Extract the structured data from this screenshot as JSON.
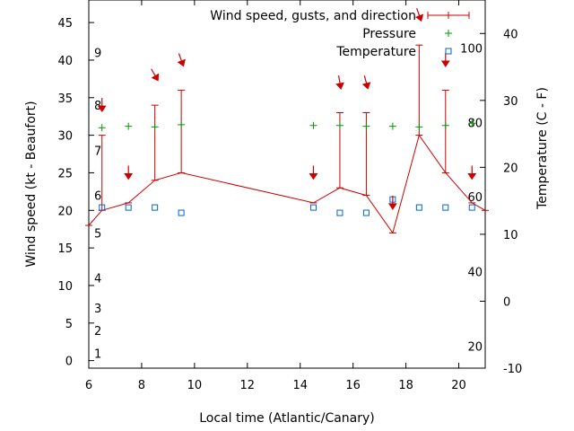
{
  "chart_data": {
    "type": "line",
    "xlabel": "Local time (Atlantic/Canary)",
    "ylabel": "Wind speed (kt - Beaufort)",
    "y2label": "Temperature (C - F)",
    "xlim": [
      6,
      21
    ],
    "ylim": [
      -1,
      48
    ],
    "y2lim": [
      -10,
      45
    ],
    "x_ticks": [
      6,
      8,
      10,
      12,
      14,
      16,
      18,
      20
    ],
    "y_ticks": [
      0,
      5,
      10,
      15,
      20,
      25,
      30,
      35,
      40,
      45
    ],
    "y2_ticks": [
      -10,
      0,
      10,
      20,
      30,
      40
    ],
    "grid": false,
    "legend_position": "top-right",
    "colors": {
      "wind": "#cc0000",
      "pressure": "#009900",
      "temperature": "#0066cc",
      "axes": "#000000"
    },
    "beaufort_scale": [
      {
        "label": "1",
        "kt": 1
      },
      {
        "label": "2",
        "kt": 4
      },
      {
        "label": "3",
        "kt": 7
      },
      {
        "label": "4",
        "kt": 11
      },
      {
        "label": "5",
        "kt": 17
      },
      {
        "label": "6",
        "kt": 22
      },
      {
        "label": "7",
        "kt": 28
      },
      {
        "label": "8",
        "kt": 34
      },
      {
        "label": "9",
        "kt": 41
      }
    ],
    "fahrenheit_scale": [
      {
        "label": "20",
        "c": -6.7
      },
      {
        "label": "40",
        "c": 4.4
      },
      {
        "label": "60",
        "c": 15.6
      },
      {
        "label": "80",
        "c": 26.7
      },
      {
        "label": "100",
        "c": 37.8
      }
    ],
    "series": [
      {
        "name": "Wind speed, gusts, and direction",
        "style": "line with error bars",
        "x": [
          6,
          6.5,
          7.5,
          8.5,
          9.5,
          14.5,
          15.5,
          16.5,
          17.5,
          18.5,
          19.5,
          20.5,
          21
        ],
        "y": [
          18,
          20,
          21,
          24,
          25,
          21,
          23,
          22,
          17,
          30,
          25,
          21,
          20
        ],
        "gusts": [
          null,
          30,
          null,
          34,
          36,
          null,
          33,
          33,
          null,
          42,
          36,
          null,
          null
        ],
        "direction_arrows": [
          {
            "x": 6.5,
            "y": 34,
            "angle": 0
          },
          {
            "x": 7.5,
            "y": 25,
            "angle": 0
          },
          {
            "x": 8.5,
            "y": 38,
            "angle": -30
          },
          {
            "x": 9.5,
            "y": 40,
            "angle": -20
          },
          {
            "x": 14.5,
            "y": 25,
            "angle": 0
          },
          {
            "x": 15.5,
            "y": 37,
            "angle": -10
          },
          {
            "x": 16.5,
            "y": 37,
            "angle": -15
          },
          {
            "x": 17.5,
            "y": 21,
            "angle": 0
          },
          {
            "x": 18.5,
            "y": 46,
            "angle": -20
          },
          {
            "x": 19.5,
            "y": 40,
            "angle": 0
          },
          {
            "x": 20.5,
            "y": 25,
            "angle": 0
          }
        ]
      },
      {
        "name": "Pressure",
        "style": "points (+)",
        "x": [
          6.5,
          7.5,
          8.5,
          9.5,
          14.5,
          15.5,
          16.5,
          17.5,
          18.5,
          19.5,
          20.5
        ],
        "y": [
          31,
          31.2,
          31.1,
          31.4,
          31.3,
          31.3,
          31.2,
          31.2,
          31.1,
          31.3,
          31.6
        ]
      },
      {
        "name": "Temperature",
        "style": "points (open square)",
        "axis": "y2",
        "x": [
          6.5,
          7.5,
          8.5,
          9.5,
          14.5,
          15.5,
          16.5,
          17.5,
          18.5,
          19.5,
          20.5
        ],
        "y": [
          14,
          14,
          14,
          13.2,
          14,
          13.2,
          13.2,
          15.2,
          14,
          14,
          14
        ]
      }
    ]
  }
}
